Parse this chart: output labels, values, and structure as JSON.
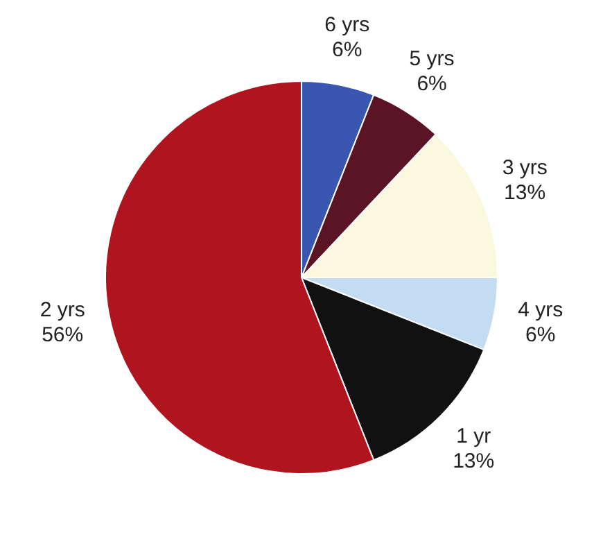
{
  "chart_data": {
    "type": "pie",
    "categories": [
      "6 yrs",
      "5 yrs",
      "3 yrs",
      "4 yrs",
      "1 yr",
      "2 yrs"
    ],
    "values": [
      6,
      6,
      13,
      6,
      13,
      56
    ],
    "value_labels": [
      "6%",
      "6%",
      "13%",
      "6%",
      "13%",
      "56%"
    ],
    "colors": [
      "#3a56b0",
      "#5a1424",
      "#fbf8e0",
      "#c4dcf2",
      "#111111",
      "#b0141e"
    ],
    "legend": false
  }
}
